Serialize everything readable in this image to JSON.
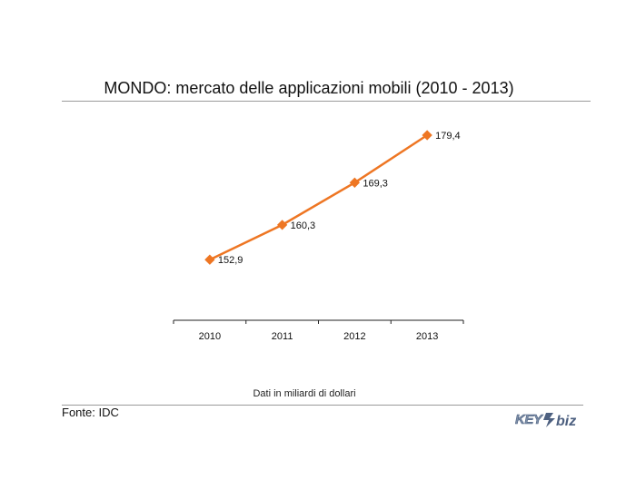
{
  "chart_data": {
    "type": "line",
    "title": "MONDO: mercato delle applicazioni mobili (2010 - 2013)",
    "categories": [
      "2010",
      "2011",
      "2012",
      "2013"
    ],
    "series": [
      {
        "values": [
          152.9,
          160.3,
          169.3,
          179.4
        ],
        "labels": [
          "152,9",
          "160,3",
          "169,3",
          "179,4"
        ],
        "color": "#ee7623"
      }
    ],
    "ylim": [
      140,
      185
    ],
    "grid": false,
    "legend": "none"
  },
  "note": "Dati in miliardi di dollari",
  "source": "Fonte: IDC",
  "logo": {
    "icon": "key4biz-logo",
    "text": "KEY4biz",
    "color": "#5b6f8a"
  }
}
